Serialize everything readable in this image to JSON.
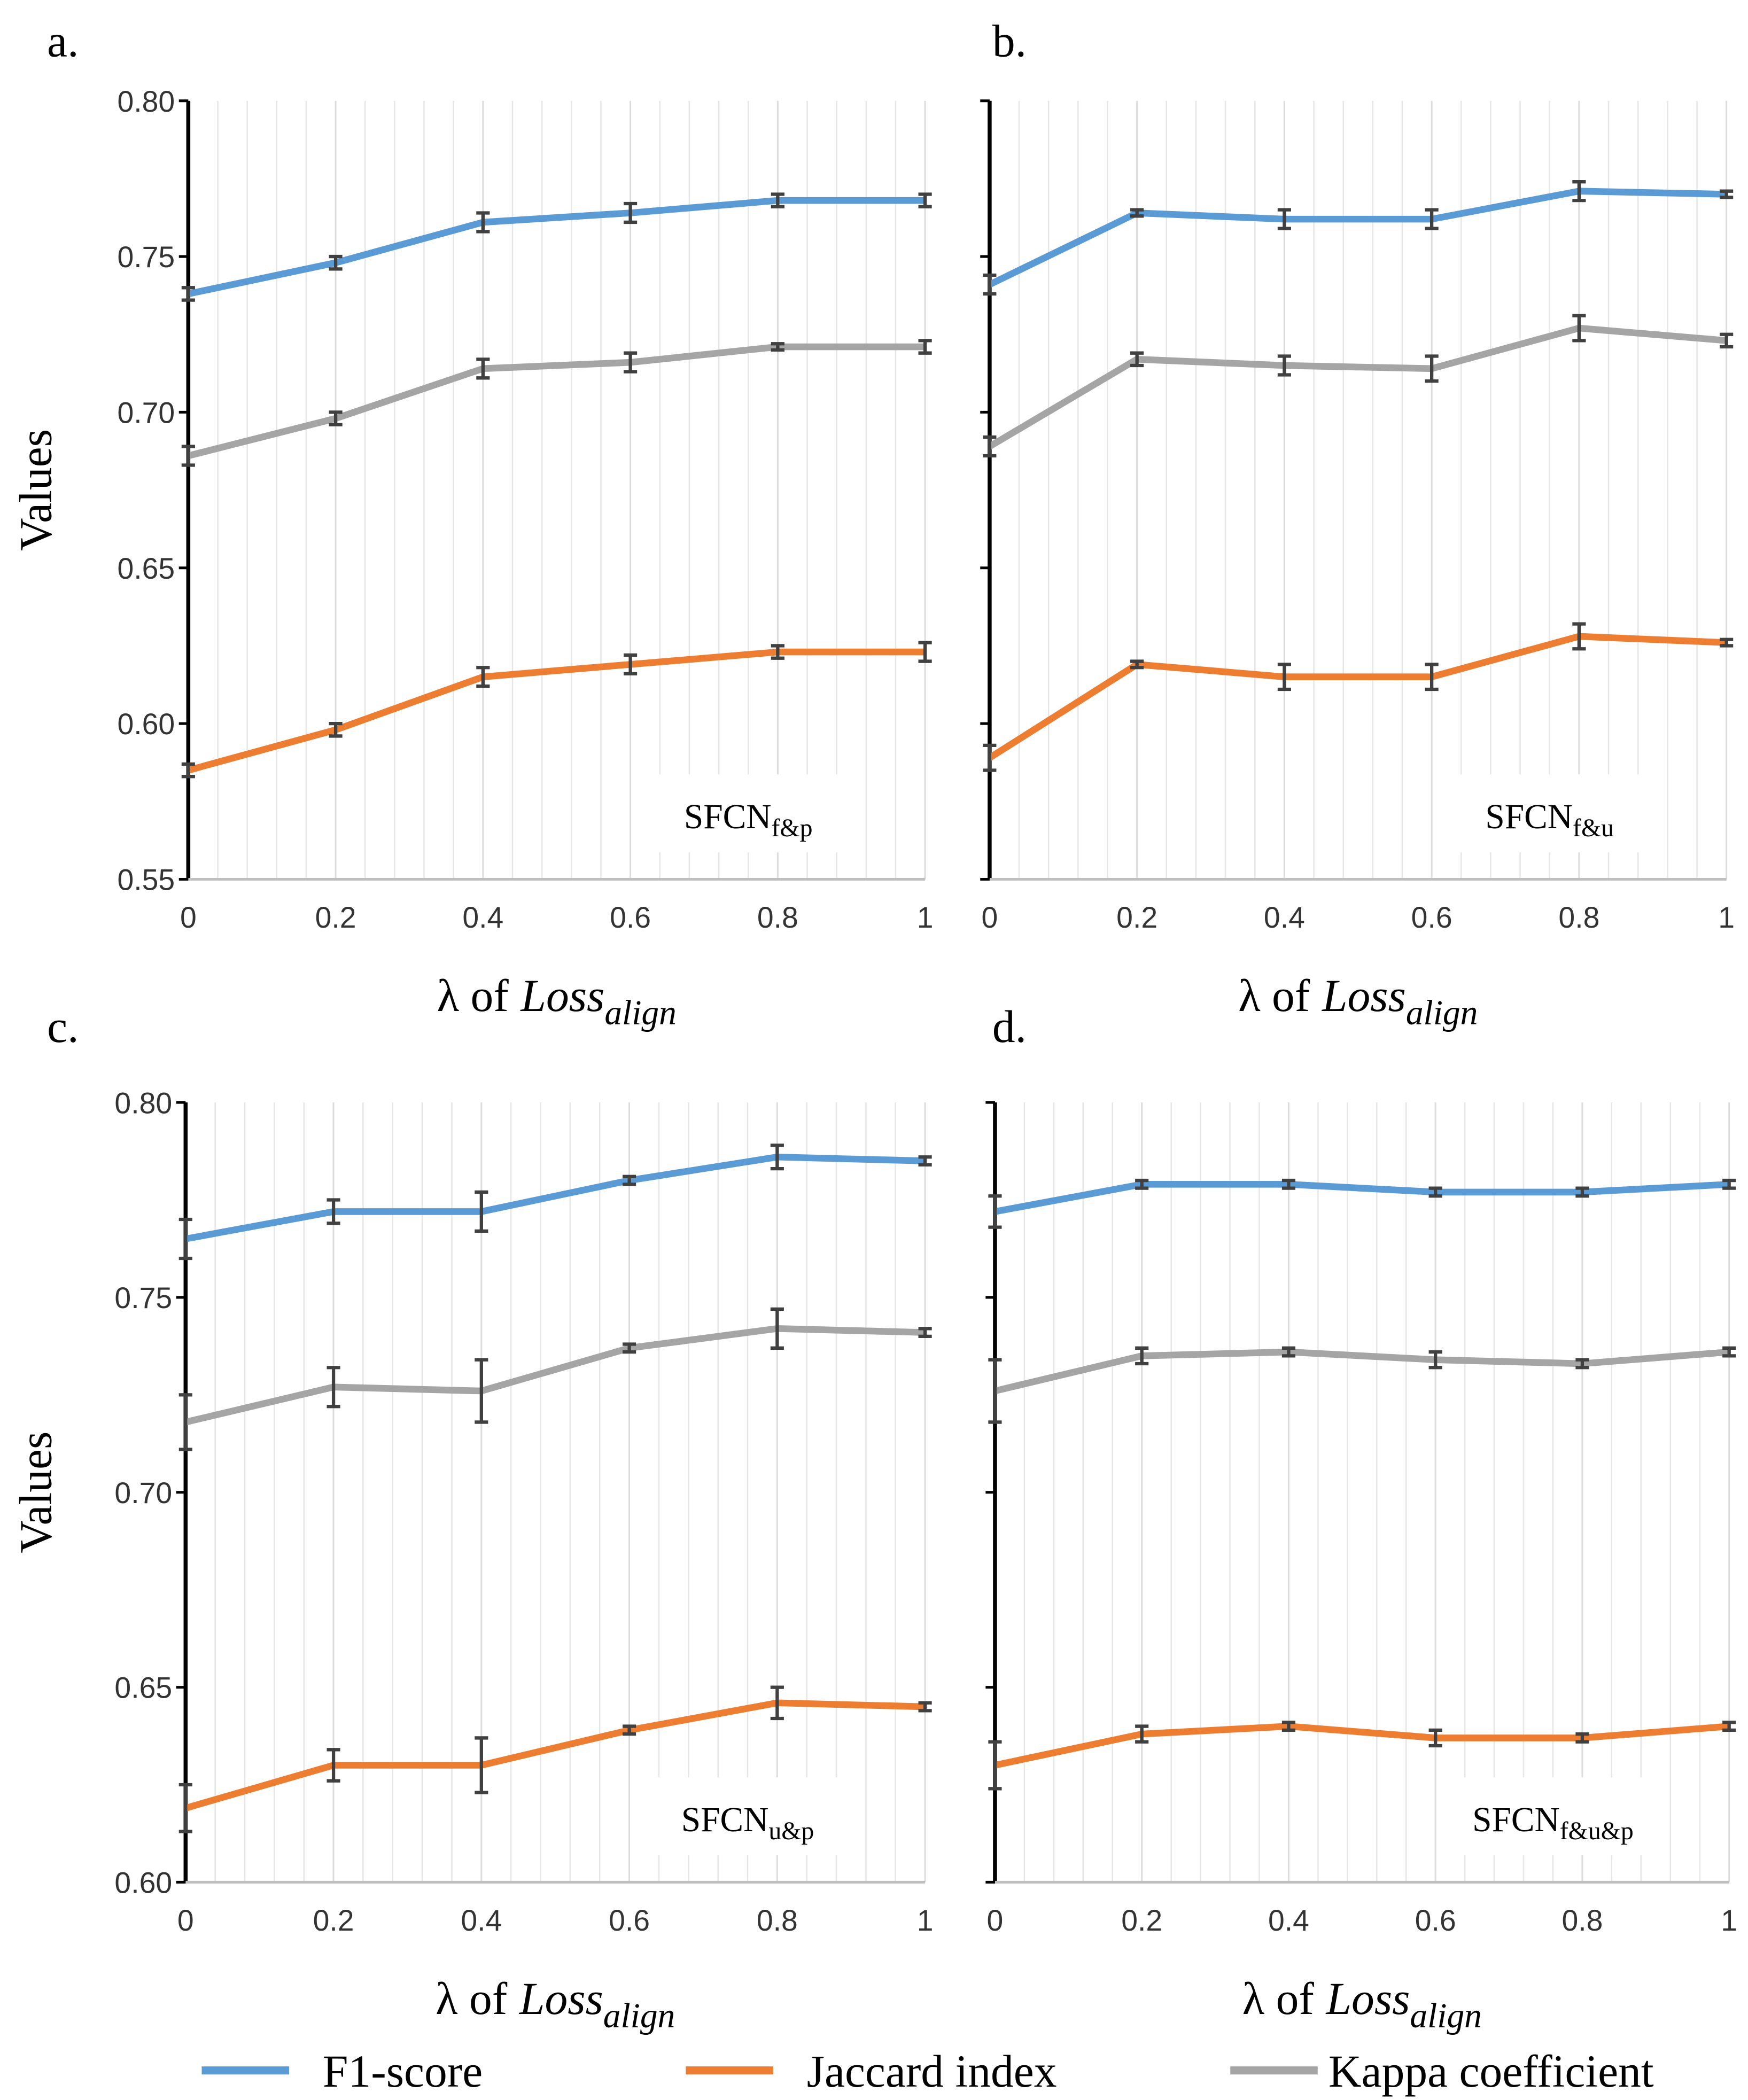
{
  "chart_data": [
    {
      "type": "line",
      "label": "a.",
      "ylabel": "Values",
      "xlabel": [
        "λ of",
        "Loss",
        "align"
      ],
      "annotation": [
        "SFCN",
        "f&p"
      ],
      "x": [
        0,
        0.2,
        0.4,
        0.6,
        0.8,
        1
      ],
      "xlim": [
        0,
        1
      ],
      "xticks": [
        0,
        0.2,
        0.4,
        0.6,
        0.8,
        1
      ],
      "ylim": [
        0.55,
        0.8
      ],
      "yticks": [
        0.55,
        {
          "value": 0.6,
          "label": "0.60"
        },
        0.65,
        {
          "value": 0.7,
          "label": "0.70"
        },
        0.75,
        {
          "value": 0.8,
          "label": "0.80"
        }
      ],
      "show_ytick_labels": true,
      "grid": true,
      "series": [
        {
          "values": [
            0.738,
            0.748,
            0.761,
            0.764,
            0.768,
            0.768
          ],
          "errors": [
            0.002,
            0.002,
            0.003,
            0.003,
            0.002,
            0.002
          ]
        },
        {
          "values": [
            0.585,
            0.598,
            0.615,
            0.619,
            0.623,
            0.623
          ],
          "errors": [
            0.002,
            0.002,
            0.003,
            0.003,
            0.002,
            0.003
          ]
        },
        {
          "values": [
            0.686,
            0.698,
            0.714,
            0.716,
            0.721,
            0.721
          ],
          "errors": [
            0.003,
            0.002,
            0.003,
            0.003,
            0.001,
            0.002
          ]
        }
      ]
    },
    {
      "type": "line",
      "label": "b.",
      "xlabel": [
        "λ of",
        "Loss",
        "align"
      ],
      "annotation": [
        "SFCN",
        "f&u"
      ],
      "x": [
        0,
        0.2,
        0.4,
        0.6,
        0.8,
        1
      ],
      "xlim": [
        0,
        1
      ],
      "xticks": [
        0,
        0.2,
        0.4,
        0.6,
        0.8,
        1
      ],
      "ylim": [
        0.55,
        0.8
      ],
      "yticks": [
        0.55,
        0.6,
        0.65,
        0.7,
        0.75,
        0.8
      ],
      "show_ytick_labels": false,
      "grid": true,
      "series": [
        {
          "values": [
            0.741,
            0.764,
            0.762,
            0.762,
            0.771,
            0.77
          ],
          "errors": [
            0.003,
            0.001,
            0.003,
            0.003,
            0.003,
            0.001
          ]
        },
        {
          "values": [
            0.589,
            0.619,
            0.615,
            0.615,
            0.628,
            0.626
          ],
          "errors": [
            0.004,
            0.001,
            0.004,
            0.004,
            0.004,
            0.001
          ]
        },
        {
          "values": [
            0.689,
            0.717,
            0.715,
            0.714,
            0.727,
            0.723
          ],
          "errors": [
            0.003,
            0.002,
            0.003,
            0.004,
            0.004,
            0.002
          ]
        }
      ]
    },
    {
      "type": "line",
      "label": "c.",
      "ylabel": "Values",
      "xlabel": [
        "λ of",
        "Loss",
        "align"
      ],
      "annotation": [
        "SFCN",
        "u&p"
      ],
      "x": [
        0,
        0.2,
        0.4,
        0.6,
        0.8,
        1
      ],
      "xlim": [
        0,
        1
      ],
      "xticks": [
        0,
        0.2,
        0.4,
        0.6,
        0.8,
        1
      ],
      "ylim": [
        0.6,
        0.8
      ],
      "yticks": [
        {
          "value": 0.6,
          "label": "0.60"
        },
        0.65,
        {
          "value": 0.7,
          "label": "0.70"
        },
        0.75,
        {
          "value": 0.8,
          "label": "0.80"
        }
      ],
      "show_ytick_labels": true,
      "grid": true,
      "series": [
        {
          "values": [
            0.765,
            0.772,
            0.772,
            0.78,
            0.786,
            0.785
          ],
          "errors": [
            0.005,
            0.003,
            0.005,
            0.001,
            0.003,
            0.001
          ]
        },
        {
          "values": [
            0.619,
            0.63,
            0.63,
            0.639,
            0.646,
            0.645
          ],
          "errors": [
            0.006,
            0.004,
            0.007,
            0.001,
            0.004,
            0.001
          ]
        },
        {
          "values": [
            0.718,
            0.727,
            0.726,
            0.737,
            0.742,
            0.741
          ],
          "errors": [
            0.007,
            0.005,
            0.008,
            0.001,
            0.005,
            0.001
          ]
        }
      ]
    },
    {
      "type": "line",
      "label": "d.",
      "xlabel": [
        "λ of",
        "Loss",
        "align"
      ],
      "annotation": [
        "SFCN",
        "f&u&p"
      ],
      "x": [
        0,
        0.2,
        0.4,
        0.6,
        0.8,
        1
      ],
      "xlim": [
        0,
        1
      ],
      "xticks": [
        0,
        0.2,
        0.4,
        0.6,
        0.8,
        1
      ],
      "ylim": [
        0.6,
        0.8
      ],
      "yticks": [
        0.6,
        0.65,
        0.7,
        0.75,
        0.8
      ],
      "show_ytick_labels": false,
      "grid": true,
      "series": [
        {
          "values": [
            0.772,
            0.779,
            0.779,
            0.777,
            0.777,
            0.779
          ],
          "errors": [
            0.004,
            0.001,
            0.001,
            0.001,
            0.001,
            0.001
          ]
        },
        {
          "values": [
            0.63,
            0.638,
            0.64,
            0.637,
            0.637,
            0.64
          ],
          "errors": [
            0.006,
            0.002,
            0.001,
            0.002,
            0.001,
            0.001
          ]
        },
        {
          "values": [
            0.726,
            0.735,
            0.736,
            0.734,
            0.733,
            0.736
          ],
          "errors": [
            0.008,
            0.002,
            0.001,
            0.002,
            0.001,
            0.001
          ]
        }
      ]
    }
  ],
  "legend": [
    {
      "name": "F1-score",
      "color": "#5b9bd5"
    },
    {
      "name": "Jaccard index",
      "color": "#ed7d31"
    },
    {
      "name": "Kappa coefficient",
      "color": "#a5a5a5"
    }
  ]
}
